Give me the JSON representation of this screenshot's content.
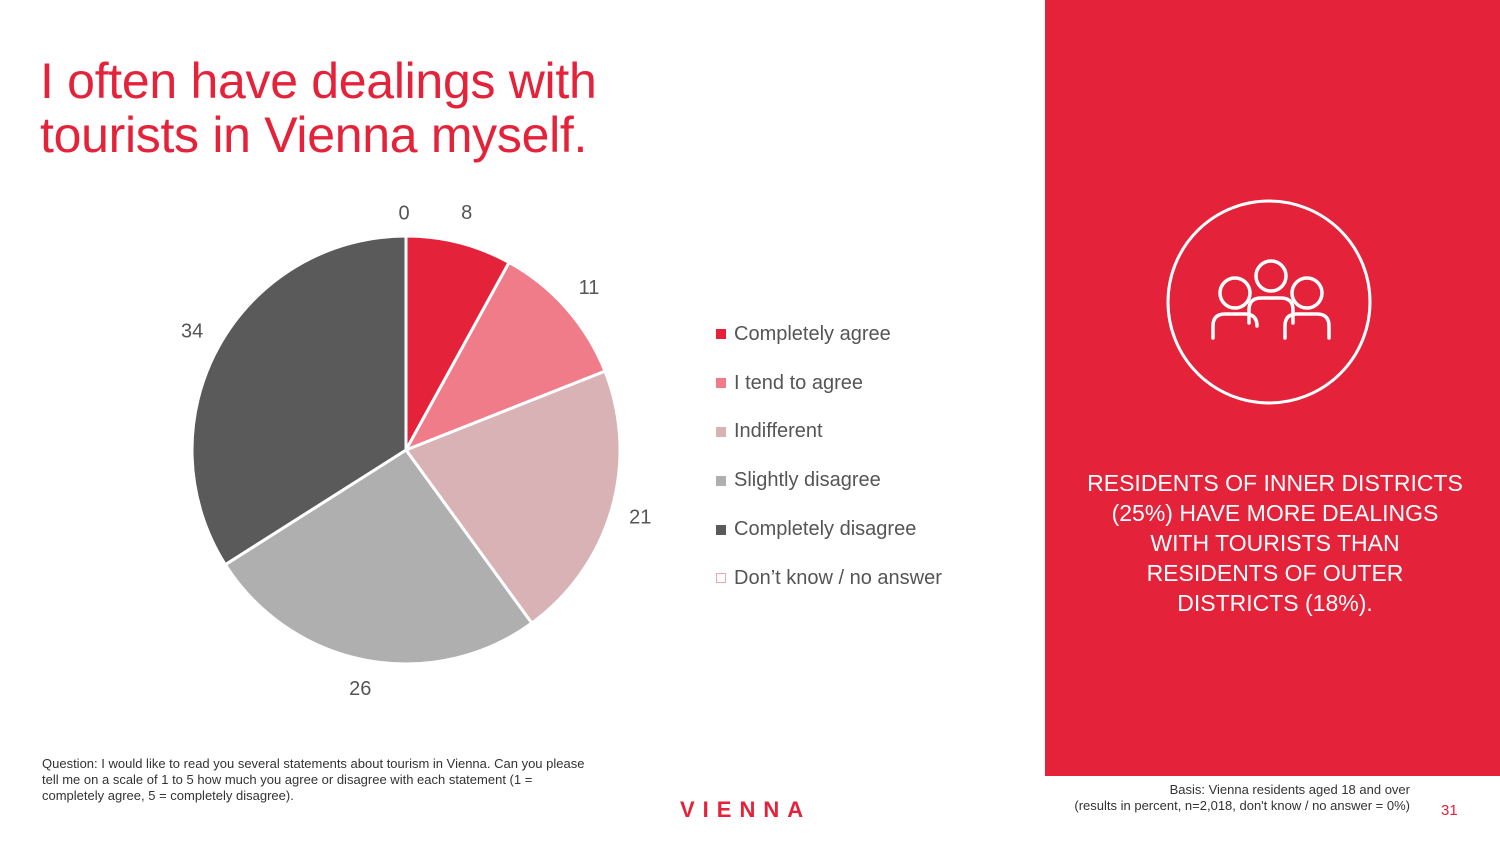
{
  "title": "I often have dealings with tourists in Vienna myself.",
  "chart_data": {
    "type": "pie",
    "categories": [
      "Completely agree",
      "I tend to agree",
      "Indifferent",
      "Slightly disagree",
      "Completely disagree",
      "Don’t know / no answer"
    ],
    "values": [
      8,
      11,
      21,
      26,
      34,
      0
    ],
    "colors": [
      "#e4223a",
      "#f07b89",
      "#d8b2b4",
      "#afafaf",
      "#5a5a5a",
      "#ffffff"
    ],
    "legend_position": "right"
  },
  "legend_colors": {
    "border_dont_know": "#f0a4ae"
  },
  "sidebar": {
    "icon": "people-group-icon",
    "callout_text": "Residents of inner districts (25%) have more dealings with tourists than residents of outer districts (18%).",
    "background": "#e4223a"
  },
  "footer": {
    "question": "Question: I would like to read you several statements about tourism in Vienna. Can you please tell me on a scale of 1 to 5 how much you agree or disagree with each statement (1 = completely agree, 5 = completely disagree).",
    "logo_text": "VIENNA",
    "basis_line1": "Basis: Vienna residents aged 18 and over",
    "basis_line2": "(results in percent, n=2,018, don't know / no answer = 0%)",
    "page_number": "31"
  }
}
